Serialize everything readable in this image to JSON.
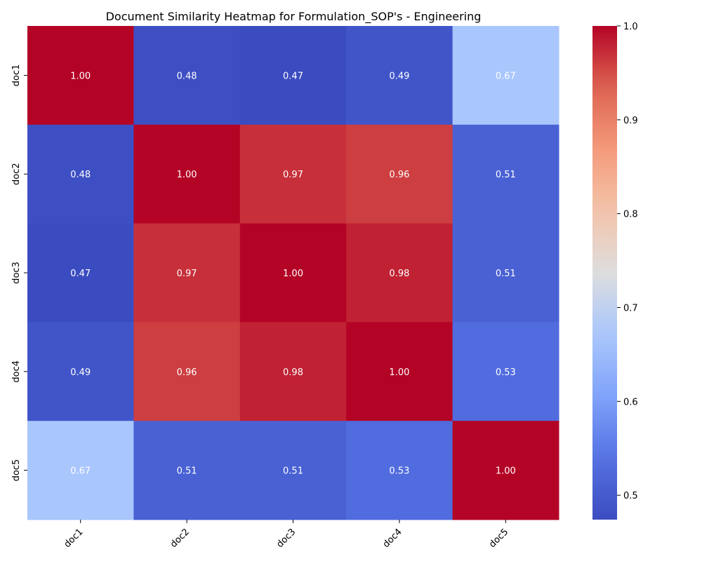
{
  "chart_data": {
    "type": "heatmap",
    "title": "Document Similarity Heatmap for Formulation_SOP's - Engineering",
    "xlabel": "",
    "ylabel": "",
    "x_categories": [
      "doc1",
      "doc2",
      "doc3",
      "doc4",
      "doc5"
    ],
    "y_categories": [
      "doc1",
      "doc2",
      "doc3",
      "doc4",
      "doc5"
    ],
    "values": [
      [
        1.0,
        0.48,
        0.47,
        0.49,
        0.67
      ],
      [
        0.48,
        1.0,
        0.97,
        0.96,
        0.51
      ],
      [
        0.47,
        0.97,
        1.0,
        0.98,
        0.51
      ],
      [
        0.49,
        0.96,
        0.98,
        1.0,
        0.53
      ],
      [
        0.67,
        0.51,
        0.51,
        0.53,
        1.0
      ]
    ],
    "value_labels": [
      [
        "1.00",
        "0.48",
        "0.47",
        "0.49",
        "0.67"
      ],
      [
        "0.48",
        "1.00",
        "0.97",
        "0.96",
        "0.51"
      ],
      [
        "0.47",
        "0.97",
        "1.00",
        "0.98",
        "0.51"
      ],
      [
        "0.49",
        "0.96",
        "0.98",
        "1.00",
        "0.53"
      ],
      [
        "0.67",
        "0.51",
        "0.51",
        "0.53",
        "1.00"
      ]
    ],
    "colormap": "coolwarm",
    "colorbar": {
      "range": [
        0.474,
        1.0
      ],
      "ticks": [
        0.5,
        0.6,
        0.7,
        0.8,
        0.9,
        1.0
      ],
      "tick_labels": [
        "0.5",
        "0.6",
        "0.7",
        "0.8",
        "0.9",
        "1.0"
      ]
    },
    "grid": false
  }
}
